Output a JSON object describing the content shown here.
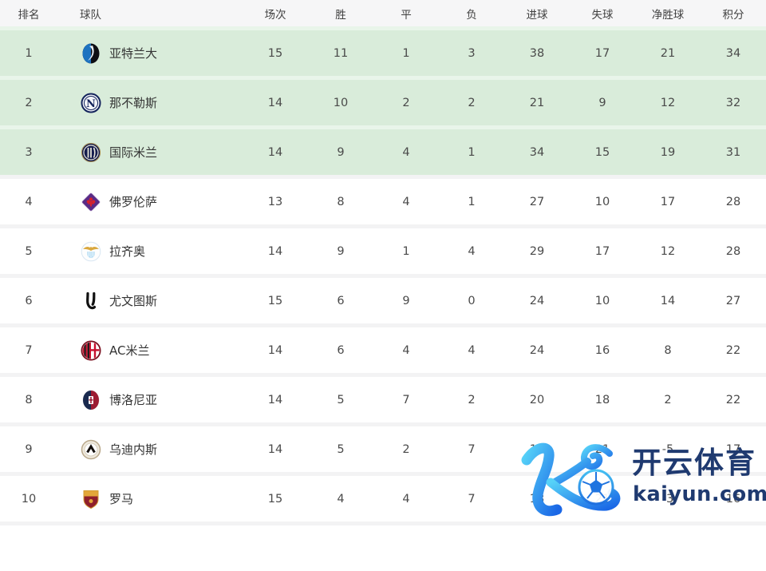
{
  "table": {
    "headers": [
      "排名",
      "球队",
      "场次",
      "胜",
      "平",
      "负",
      "进球",
      "失球",
      "净胜球",
      "积分"
    ],
    "rows": [
      {
        "rank": "1",
        "team": "亚特兰大",
        "logo": "atalanta-logo",
        "played": "15",
        "wins": "11",
        "draws": "1",
        "losses": "3",
        "goals_for": "38",
        "goals_against": "17",
        "goal_diff": "21",
        "points": "34",
        "highlighted": true
      },
      {
        "rank": "2",
        "team": "那不勒斯",
        "logo": "napoli-logo",
        "played": "14",
        "wins": "10",
        "draws": "2",
        "losses": "2",
        "goals_for": "21",
        "goals_against": "9",
        "goal_diff": "12",
        "points": "32",
        "highlighted": true
      },
      {
        "rank": "3",
        "team": "国际米兰",
        "logo": "inter-milan-logo",
        "played": "14",
        "wins": "9",
        "draws": "4",
        "losses": "1",
        "goals_for": "34",
        "goals_against": "15",
        "goal_diff": "19",
        "points": "31",
        "highlighted": true
      },
      {
        "rank": "4",
        "team": "佛罗伦萨",
        "logo": "fiorentina-logo",
        "played": "13",
        "wins": "8",
        "draws": "4",
        "losses": "1",
        "goals_for": "27",
        "goals_against": "10",
        "goal_diff": "17",
        "points": "28",
        "highlighted": false
      },
      {
        "rank": "5",
        "team": "拉齐奥",
        "logo": "lazio-logo",
        "played": "14",
        "wins": "9",
        "draws": "1",
        "losses": "4",
        "goals_for": "29",
        "goals_against": "17",
        "goal_diff": "12",
        "points": "28",
        "highlighted": false
      },
      {
        "rank": "6",
        "team": "尤文图斯",
        "logo": "juventus-logo",
        "played": "15",
        "wins": "6",
        "draws": "9",
        "losses": "0",
        "goals_for": "24",
        "goals_against": "10",
        "goal_diff": "14",
        "points": "27",
        "highlighted": false
      },
      {
        "rank": "7",
        "team": "AC米兰",
        "logo": "ac-milan-logo",
        "played": "14",
        "wins": "6",
        "draws": "4",
        "losses": "4",
        "goals_for": "24",
        "goals_against": "16",
        "goal_diff": "8",
        "points": "22",
        "highlighted": false
      },
      {
        "rank": "8",
        "team": "博洛尼亚",
        "logo": "bologna-logo",
        "played": "14",
        "wins": "5",
        "draws": "7",
        "losses": "2",
        "goals_for": "20",
        "goals_against": "18",
        "goal_diff": "2",
        "points": "22",
        "highlighted": false
      },
      {
        "rank": "9",
        "team": "乌迪内斯",
        "logo": "udinese-logo",
        "played": "14",
        "wins": "5",
        "draws": "2",
        "losses": "7",
        "goals_for": "16",
        "goals_against": "21",
        "goal_diff": "-5",
        "points": "17",
        "highlighted": false
      },
      {
        "rank": "10",
        "team": "罗马",
        "logo": "roma-logo",
        "played": "15",
        "wins": "4",
        "draws": "4",
        "losses": "7",
        "goals_for": "18",
        "goals_against": "21",
        "goal_diff": "-3",
        "points": "16",
        "highlighted": false
      }
    ]
  },
  "watermark": {
    "brand": "开云体育",
    "domain": "kaiyun.com",
    "k_icon": "kaiyun-k-icon",
    "ball_icon": "football-icon"
  },
  "colors": {
    "highlight_row_bg": "#d9ecda",
    "highlight_row_divider": "#e9f5ea",
    "header_bg": "#f6f6f7",
    "header_text": "#404040",
    "cell_text": "#4a4a4a",
    "team_text": "#333333",
    "watermark_text": "#1f3a70",
    "watermark_cyan": "#56d2f8",
    "watermark_blue": "#1a67e6"
  }
}
